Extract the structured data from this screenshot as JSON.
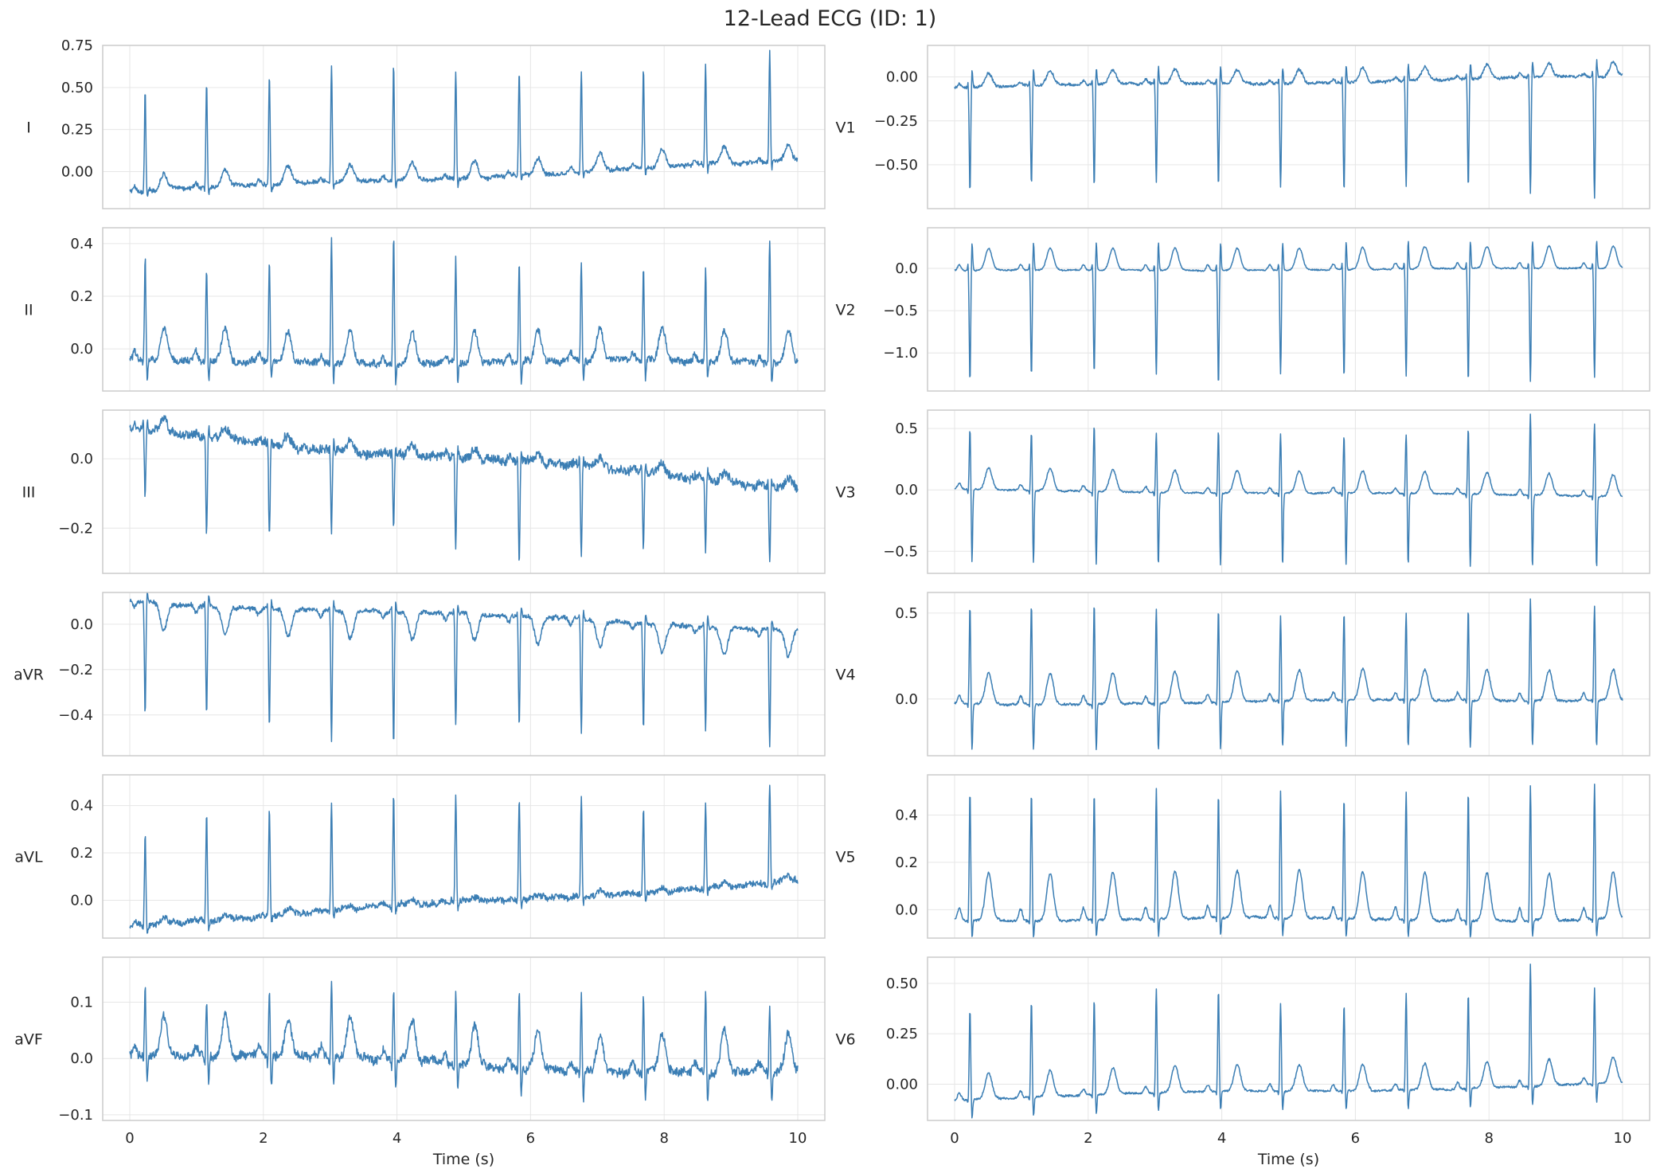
{
  "figure": {
    "title": "12-Lead ECG (ID: 1)"
  },
  "colors": {
    "trace": "#3b7eb4",
    "frame": "#cccccc",
    "grid": "#e6e6e6",
    "text": "#262626",
    "background": "#ffffff"
  },
  "chart_data": {
    "type": "line",
    "title": "12-Lead ECG (ID: 1)",
    "grid": true,
    "xlabel": "Time (s)",
    "xlim": [
      0,
      10
    ],
    "x_ticks": [
      0,
      2,
      4,
      6,
      8,
      10
    ],
    "sampling": "approximate waveform reconstruction, 10 s per lead",
    "panels": [
      {
        "lead": "I",
        "column": "left",
        "row": 0,
        "ylim": [
          -0.22,
          0.75
        ],
        "y_ticks": [
          0.0,
          0.25,
          0.5,
          0.75
        ],
        "y_tick_labels": [
          "0.00",
          "0.25",
          "0.50",
          "0.75"
        ],
        "beat_times": [
          0.23,
          1.15,
          2.09,
          3.02,
          3.95,
          4.88,
          5.83,
          6.76,
          7.69,
          8.62,
          9.58
        ],
        "r_peaks": [
          0.47,
          0.52,
          0.57,
          0.63,
          0.64,
          0.6,
          0.6,
          0.6,
          0.6,
          0.62,
          0.7
        ],
        "baseline_start": -0.12,
        "baseline_end": 0.06,
        "t_amp": 0.1,
        "q": -0.03,
        "s": -0.05,
        "noise": 0.02
      },
      {
        "lead": "II",
        "column": "left",
        "row": 1,
        "ylim": [
          -0.16,
          0.46
        ],
        "y_ticks": [
          0.0,
          0.2,
          0.4
        ],
        "y_tick_labels": [
          "0.0",
          "0.2",
          "0.4"
        ],
        "beat_times": [
          0.23,
          1.15,
          2.09,
          3.02,
          3.95,
          4.88,
          5.83,
          6.76,
          7.69,
          8.62,
          9.58
        ],
        "r_peaks": [
          0.34,
          0.3,
          0.34,
          0.42,
          0.43,
          0.34,
          0.32,
          0.32,
          0.3,
          0.3,
          0.42
        ],
        "baseline_start": -0.05,
        "baseline_end": -0.05,
        "t_amp": 0.12,
        "q": -0.02,
        "s": -0.08,
        "noise": 0.02
      },
      {
        "lead": "III",
        "column": "left",
        "row": 2,
        "ylim": [
          -0.33,
          0.14
        ],
        "y_ticks": [
          -0.2,
          0.0
        ],
        "y_tick_labels": [
          "−0.2",
          "0.0"
        ],
        "beat_times": [
          0.23,
          1.15,
          2.09,
          3.02,
          3.95,
          4.88,
          5.83,
          6.76,
          7.69,
          8.62,
          9.58
        ],
        "r_peaks": [
          -0.12,
          -0.22,
          -0.22,
          -0.2,
          -0.2,
          -0.26,
          -0.3,
          -0.29,
          -0.26,
          -0.27,
          -0.29
        ],
        "baseline_start": 0.08,
        "baseline_end": -0.08,
        "t_amp": 0.03,
        "q": 0.02,
        "s": 0.03,
        "noise": 0.02
      },
      {
        "lead": "aVR",
        "column": "left",
        "row": 3,
        "ylim": [
          -0.58,
          0.14
        ],
        "y_ticks": [
          -0.4,
          -0.2,
          0.0
        ],
        "y_tick_labels": [
          "−0.4",
          "−0.2",
          "0.0"
        ],
        "beat_times": [
          0.23,
          1.15,
          2.09,
          3.02,
          3.95,
          4.88,
          5.83,
          6.76,
          7.69,
          8.62,
          9.58
        ],
        "r_peaks": [
          -0.4,
          -0.4,
          -0.45,
          -0.52,
          -0.54,
          -0.46,
          -0.46,
          -0.49,
          -0.46,
          -0.46,
          -0.54
        ],
        "baseline_start": 0.1,
        "baseline_end": -0.02,
        "t_amp": -0.12,
        "q": 0.03,
        "s": 0.05,
        "noise": 0.015
      },
      {
        "lead": "aVL",
        "column": "left",
        "row": 4,
        "ylim": [
          -0.16,
          0.53
        ],
        "y_ticks": [
          0.0,
          0.2,
          0.4
        ],
        "y_tick_labels": [
          "0.0",
          "0.2",
          "0.4"
        ],
        "beat_times": [
          0.23,
          1.15,
          2.09,
          3.02,
          3.95,
          4.88,
          5.83,
          6.76,
          7.69,
          8.62,
          9.58
        ],
        "r_peaks": [
          0.29,
          0.38,
          0.39,
          0.42,
          0.44,
          0.44,
          0.44,
          0.44,
          0.4,
          0.42,
          0.5
        ],
        "baseline_start": -0.1,
        "baseline_end": 0.08,
        "t_amp": 0.02,
        "q": -0.02,
        "s": -0.04,
        "noise": 0.02
      },
      {
        "lead": "aVF",
        "column": "left",
        "row": 5,
        "ylim": [
          -0.11,
          0.18
        ],
        "y_ticks": [
          -0.1,
          0.0,
          0.1
        ],
        "y_tick_labels": [
          "−0.1",
          "0.0",
          "0.1"
        ],
        "beat_times": [
          0.23,
          1.15,
          2.09,
          3.02,
          3.95,
          4.88,
          5.83,
          6.76,
          7.69,
          8.62,
          9.58
        ],
        "r_peaks": [
          0.13,
          0.1,
          0.12,
          0.13,
          0.12,
          0.12,
          0.12,
          0.12,
          0.12,
          0.12,
          0.09
        ],
        "baseline_start": 0.01,
        "baseline_end": -0.03,
        "t_amp": 0.07,
        "q": -0.02,
        "s": -0.05,
        "noise": 0.012
      },
      {
        "lead": "V1",
        "column": "right",
        "row": 0,
        "ylim": [
          -0.75,
          0.18
        ],
        "y_ticks": [
          -0.5,
          -0.25,
          0.0
        ],
        "y_tick_labels": [
          "−0.50",
          "−0.25",
          "0.00"
        ],
        "beat_times": [
          0.23,
          1.15,
          2.09,
          3.02,
          3.95,
          4.88,
          5.83,
          6.76,
          7.69,
          8.62,
          9.58
        ],
        "r_peaks": [
          -0.66,
          -0.62,
          -0.63,
          -0.6,
          -0.62,
          -0.62,
          -0.65,
          -0.62,
          -0.63,
          -0.68,
          -0.7
        ],
        "baseline_start": -0.06,
        "baseline_end": 0.0,
        "t_amp": 0.08,
        "q": 0.05,
        "s": 0.1,
        "noise": 0.012
      },
      {
        "lead": "V2",
        "column": "right",
        "row": 1,
        "ylim": [
          -1.45,
          0.48
        ],
        "y_ticks": [
          -1.0,
          -0.5,
          0.0
        ],
        "y_tick_labels": [
          "−1.0",
          "−0.5",
          "0.0"
        ],
        "beat_times": [
          0.23,
          1.15,
          2.09,
          3.02,
          3.95,
          4.88,
          5.83,
          6.76,
          7.69,
          8.62,
          9.58
        ],
        "r_peaks": [
          -1.35,
          -1.28,
          -1.25,
          -1.25,
          -1.38,
          -1.25,
          -1.3,
          -1.28,
          -1.35,
          -1.35,
          -1.3
        ],
        "baseline_start": -0.03,
        "baseline_end": 0.0,
        "t_amp": 0.26,
        "q": 0.12,
        "s": 0.35,
        "noise": 0.012
      },
      {
        "lead": "V3",
        "column": "right",
        "row": 2,
        "ylim": [
          -0.68,
          0.65
        ],
        "y_ticks": [
          -0.5,
          0.0,
          0.5
        ],
        "y_tick_labels": [
          "−0.5",
          "0.0",
          "0.5"
        ],
        "beat_times": [
          0.23,
          1.15,
          2.09,
          3.02,
          3.95,
          4.88,
          5.83,
          6.76,
          7.69,
          8.62,
          9.58
        ],
        "r_peaks": [
          0.49,
          0.47,
          0.54,
          0.47,
          0.49,
          0.47,
          0.44,
          0.45,
          0.5,
          0.62,
          0.55
        ],
        "baseline_start": 0.0,
        "baseline_end": -0.05,
        "t_amp": 0.18,
        "q": -0.05,
        "s": -0.6,
        "noise": 0.01
      },
      {
        "lead": "V4",
        "column": "right",
        "row": 3,
        "ylim": [
          -0.33,
          0.62
        ],
        "y_ticks": [
          0.0,
          0.5
        ],
        "y_tick_labels": [
          "0.0",
          "0.5"
        ],
        "beat_times": [
          0.23,
          1.15,
          2.09,
          3.02,
          3.95,
          4.88,
          5.83,
          6.76,
          7.69,
          8.62,
          9.58
        ],
        "r_peaks": [
          0.54,
          0.55,
          0.56,
          0.53,
          0.53,
          0.48,
          0.5,
          0.5,
          0.52,
          0.6,
          0.55
        ],
        "baseline_start": -0.03,
        "baseline_end": 0.0,
        "t_amp": 0.18,
        "q": -0.04,
        "s": -0.28,
        "noise": 0.01
      },
      {
        "lead": "V5",
        "column": "right",
        "row": 4,
        "ylim": [
          -0.12,
          0.57
        ],
        "y_ticks": [
          0.0,
          0.2,
          0.4
        ],
        "y_tick_labels": [
          "0.0",
          "0.2",
          "0.4"
        ],
        "beat_times": [
          0.23,
          1.15,
          2.09,
          3.02,
          3.95,
          4.88,
          5.83,
          6.76,
          7.69,
          8.62,
          9.58
        ],
        "r_peaks": [
          0.5,
          0.5,
          0.5,
          0.51,
          0.49,
          0.5,
          0.47,
          0.5,
          0.51,
          0.53,
          0.53
        ],
        "baseline_start": -0.04,
        "baseline_end": -0.04,
        "t_amp": 0.2,
        "q": -0.03,
        "s": -0.08,
        "noise": 0.008
      },
      {
        "lead": "V6",
        "column": "right",
        "row": 5,
        "ylim": [
          -0.18,
          0.63
        ],
        "y_ticks": [
          0.0,
          0.25,
          0.5
        ],
        "y_tick_labels": [
          "0.00",
          "0.25",
          "0.50"
        ],
        "beat_times": [
          0.23,
          1.15,
          2.09,
          3.02,
          3.95,
          4.88,
          5.83,
          6.76,
          7.69,
          8.62,
          9.58
        ],
        "r_peaks": [
          0.38,
          0.42,
          0.42,
          0.47,
          0.46,
          0.4,
          0.4,
          0.46,
          0.46,
          0.6,
          0.47
        ],
        "baseline_start": -0.07,
        "baseline_end": 0.0,
        "t_amp": 0.13,
        "q": -0.03,
        "s": -0.1,
        "noise": 0.008
      }
    ]
  }
}
